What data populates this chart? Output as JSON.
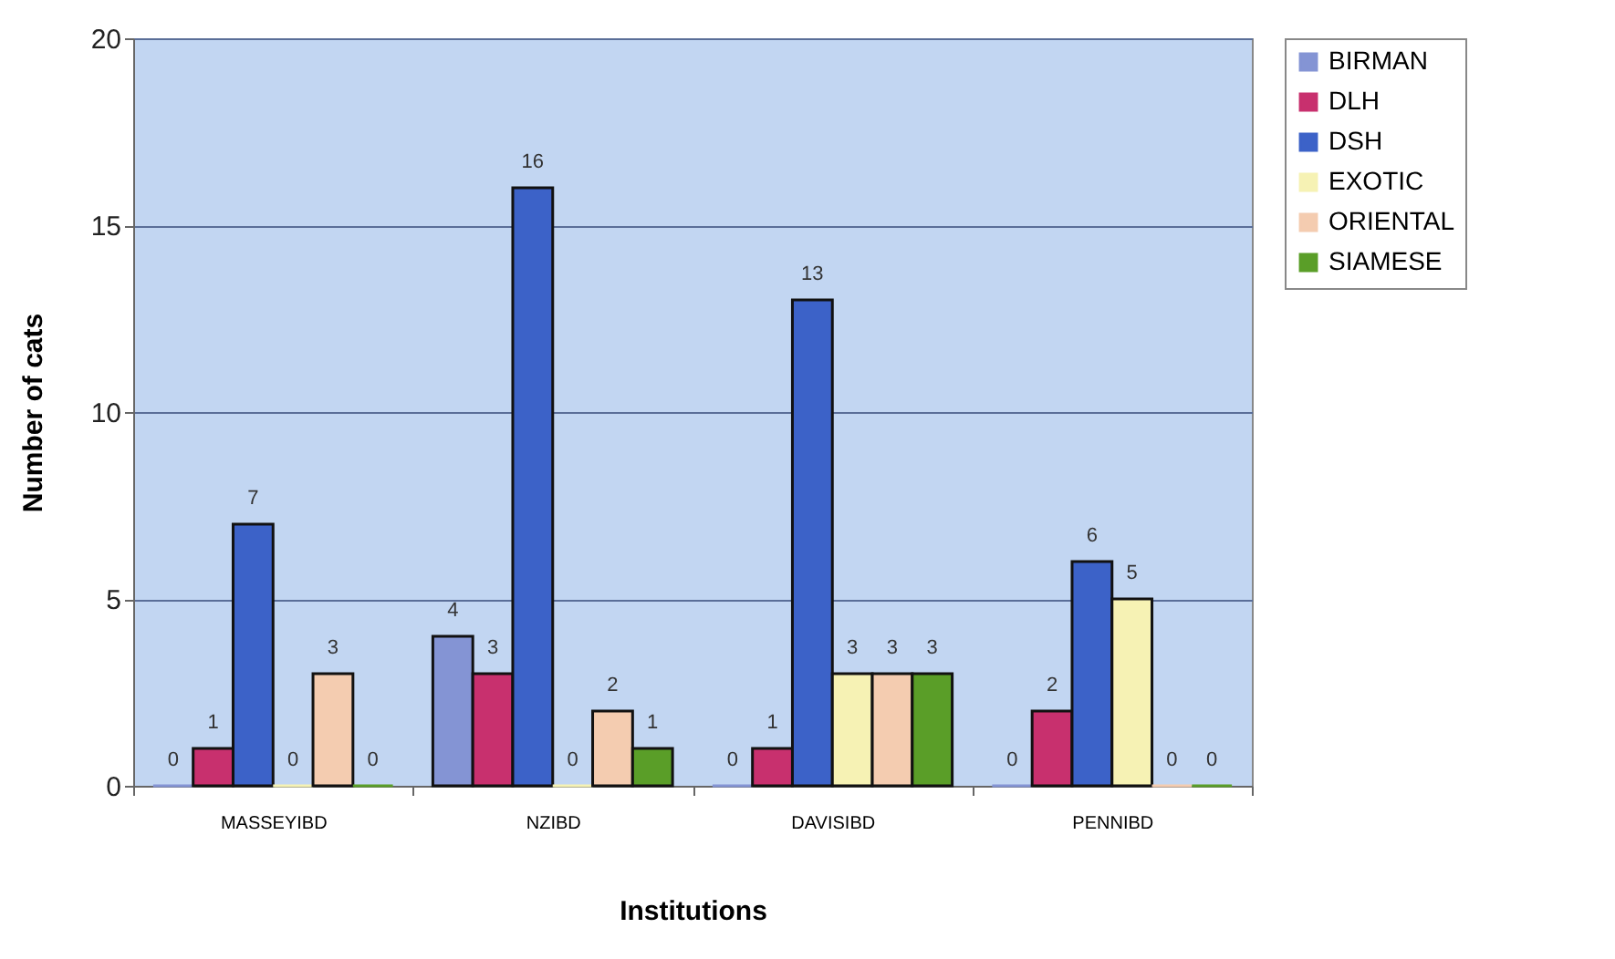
{
  "chart_data": {
    "type": "bar",
    "xlabel": "Institutions",
    "ylabel": "Number of cats",
    "categories": [
      "MASSEYIBD",
      "NZIBD",
      "DAVISIBD",
      "PENNIBD"
    ],
    "series": [
      {
        "name": "BIRMAN",
        "color": "#8494d4",
        "values": [
          0,
          4,
          0,
          0
        ]
      },
      {
        "name": "DLH",
        "color": "#c8306e",
        "values": [
          1,
          3,
          1,
          2
        ]
      },
      {
        "name": "DSH",
        "color": "#3c62c8",
        "values": [
          7,
          16,
          13,
          6
        ]
      },
      {
        "name": "EXOTIC",
        "color": "#f6f2b4",
        "values": [
          0,
          0,
          3,
          5
        ]
      },
      {
        "name": "ORIENTAL",
        "color": "#f4ccb0",
        "values": [
          3,
          2,
          3,
          0
        ]
      },
      {
        "name": "SIAMESE",
        "color": "#5a9e28",
        "values": [
          0,
          1,
          3,
          0
        ]
      }
    ],
    "ylim": [
      0,
      20
    ],
    "yticks": [
      0,
      5,
      10,
      15,
      20
    ],
    "grid": "y",
    "legend": "right",
    "data_labels": true
  }
}
